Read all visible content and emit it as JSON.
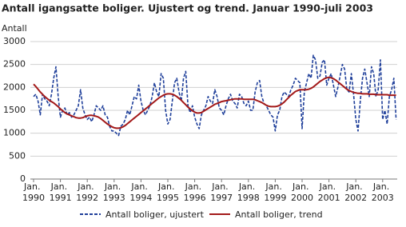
{
  "chart_data": {
    "type": "line",
    "title": "Antall igangsatte boliger. Ujustert og trend. Januar 1990-juli 2003",
    "y_label": "Antall",
    "categories": [
      "Jan. 1990",
      null,
      null,
      null,
      null,
      null,
      null,
      null,
      null,
      null,
      null,
      null,
      "Jan. 1991",
      null,
      null,
      null,
      null,
      null,
      null,
      null,
      null,
      null,
      null,
      null,
      "Jan. 1992",
      null,
      null,
      null,
      null,
      null,
      null,
      null,
      null,
      null,
      null,
      null,
      "Jan. 1993",
      null,
      null,
      null,
      null,
      null,
      null,
      null,
      null,
      null,
      null,
      null,
      "Jan. 1994",
      null,
      null,
      null,
      null,
      null,
      null,
      null,
      null,
      null,
      null,
      null,
      "Jan. 1995",
      null,
      null,
      null,
      null,
      null,
      null,
      null,
      null,
      null,
      null,
      null,
      "Jan. 1996",
      null,
      null,
      null,
      null,
      null,
      null,
      null,
      null,
      null,
      null,
      null,
      "Jan. 1997",
      null,
      null,
      null,
      null,
      null,
      null,
      null,
      null,
      null,
      null,
      null,
      "Jan. 1998",
      null,
      null,
      null,
      null,
      null,
      null,
      null,
      null,
      null,
      null,
      null,
      "Jan. 1999",
      null,
      null,
      null,
      null,
      null,
      null,
      null,
      null,
      null,
      null,
      null,
      "Jan. 2000",
      null,
      null,
      null,
      null,
      null,
      null,
      null,
      null,
      null,
      null,
      null,
      "Jan. 2001",
      null,
      null,
      null,
      null,
      null,
      null,
      null,
      null,
      null,
      null,
      null,
      "Jan. 2002",
      null,
      null,
      null,
      null,
      null,
      null,
      null,
      null,
      null,
      null,
      null,
      "Jan. 2003",
      null,
      null,
      null,
      null,
      null,
      null
    ],
    "series": [
      {
        "name": "Antall boliger, ujustert",
        "color": "#1f3f9a",
        "dashed": true,
        "values": [
          1800,
          1850,
          1700,
          1400,
          1850,
          1750,
          1700,
          1600,
          1850,
          2200,
          2450,
          1800,
          1350,
          1500,
          1550,
          1400,
          1450,
          1350,
          1400,
          1500,
          1600,
          1950,
          1550,
          1400,
          1300,
          1350,
          1250,
          1400,
          1600,
          1550,
          1500,
          1600,
          1400,
          1350,
          1150,
          1050,
          1050,
          1000,
          950,
          1150,
          1200,
          1300,
          1500,
          1400,
          1600,
          1800,
          1750,
          2050,
          1700,
          1500,
          1400,
          1500,
          1600,
          1800,
          2100,
          1900,
          1800,
          2300,
          2200,
          1500,
          1200,
          1300,
          1700,
          2100,
          2200,
          1900,
          1700,
          2200,
          2350,
          1600,
          1450,
          1600,
          1350,
          1200,
          1100,
          1400,
          1500,
          1600,
          1800,
          1700,
          1650,
          1950,
          1800,
          1550,
          1500,
          1400,
          1600,
          1750,
          1850,
          1700,
          1650,
          1550,
          1850,
          1800,
          1650,
          1600,
          1700,
          1500,
          1500,
          1900,
          2100,
          2150,
          1800,
          1650,
          1600,
          1500,
          1400,
          1350,
          1050,
          1400,
          1500,
          1800,
          1900,
          1850,
          1800,
          1950,
          2050,
          2200,
          2150,
          2100,
          1100,
          1900,
          2100,
          2300,
          2200,
          2700,
          2600,
          2200,
          2250,
          2550,
          2600,
          2050,
          2200,
          2300,
          2050,
          1800,
          2000,
          2250,
          2500,
          2400,
          1950,
          1900,
          2300,
          1850,
          1300,
          1050,
          1700,
          2200,
          2400,
          2100,
          1800,
          2450,
          2300,
          1800,
          1950,
          2600,
          1300,
          1500,
          1200,
          1800,
          1950,
          2200,
          1300
        ]
      },
      {
        "name": "Antall boliger, trend",
        "color": "#a31a1a",
        "dashed": false,
        "values": [
          2070,
          2020,
          1960,
          1900,
          1850,
          1800,
          1760,
          1720,
          1690,
          1660,
          1620,
          1580,
          1530,
          1490,
          1450,
          1420,
          1400,
          1380,
          1360,
          1340,
          1330,
          1330,
          1340,
          1360,
          1380,
          1390,
          1390,
          1380,
          1370,
          1350,
          1320,
          1280,
          1240,
          1200,
          1170,
          1140,
          1120,
          1110,
          1110,
          1120,
          1140,
          1170,
          1210,
          1250,
          1290,
          1330,
          1370,
          1410,
          1450,
          1490,
          1530,
          1570,
          1610,
          1650,
          1690,
          1730,
          1770,
          1800,
          1830,
          1850,
          1860,
          1860,
          1850,
          1830,
          1800,
          1760,
          1720,
          1670,
          1620,
          1570,
          1530,
          1490,
          1460,
          1440,
          1440,
          1450,
          1480,
          1510,
          1540,
          1570,
          1600,
          1630,
          1650,
          1670,
          1690,
          1700,
          1710,
          1720,
          1730,
          1740,
          1750,
          1750,
          1750,
          1750,
          1740,
          1740,
          1740,
          1740,
          1740,
          1730,
          1710,
          1690,
          1670,
          1640,
          1610,
          1590,
          1580,
          1580,
          1580,
          1590,
          1610,
          1640,
          1680,
          1730,
          1780,
          1830,
          1870,
          1910,
          1930,
          1950,
          1950,
          1950,
          1950,
          1960,
          1980,
          2010,
          2050,
          2090,
          2130,
          2160,
          2190,
          2210,
          2220,
          2210,
          2190,
          2160,
          2120,
          2080,
          2040,
          2000,
          1960,
          1930,
          1910,
          1890,
          1880,
          1870,
          1870,
          1860,
          1860,
          1860,
          1850,
          1850,
          1850,
          1840,
          1840,
          1840,
          1840,
          1840,
          1840,
          1830,
          1830,
          1830,
          1830
        ]
      }
    ],
    "ylim": [
      0,
      3000
    ],
    "yticks": [
      0,
      500,
      1000,
      1500,
      2000,
      2500,
      3000
    ],
    "grid": true
  }
}
